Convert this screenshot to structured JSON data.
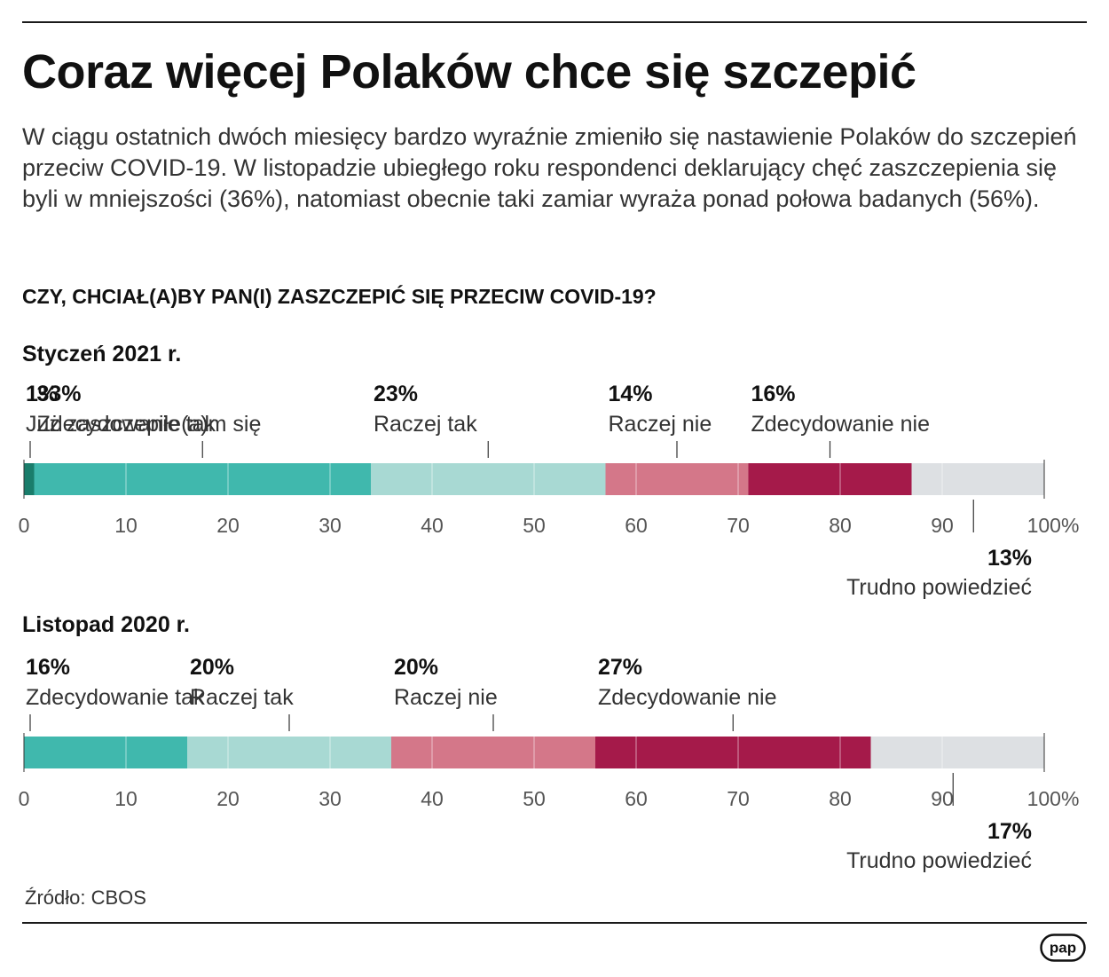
{
  "title": "Coraz więcej Polaków chce się szczepić",
  "subtitle": "W ciągu ostatnich dwóch miesięcy bardzo wyraźnie zmieniło się nastawienie Polaków do szczepień przeciw COVID-19. W listopadzie ubiegłego roku respondenci deklarujący chęć zaszczepienia się byli w mniejszości (36%), natomiast obecnie taki zamiar wyraża ponad połowa badanych (56%).",
  "question": "CZY, CHCIAŁ(A)BY PAN(I) ZASZCZEPIĆ SIĘ PRZECIW COVID-19?",
  "source": "Źródło: CBOS",
  "logo": "pap",
  "colors": {
    "already": "#1a7d6b",
    "definitely_yes": "#40b8ad",
    "rather_yes": "#a8d9d3",
    "rather_no": "#d47789",
    "definitely_no": "#a51a4a",
    "hard_to_say": "#dde0e3"
  },
  "chart_data": [
    {
      "type": "bar",
      "stacked": true,
      "orientation": "horizontal",
      "title": "Styczeń 2021 r.",
      "xlim": [
        0,
        100
      ],
      "x_ticks": [
        "0",
        "10",
        "20",
        "30",
        "40",
        "50",
        "60",
        "70",
        "80",
        "90",
        "100%"
      ],
      "series": [
        {
          "name": "Już zaszczepiłe(a)m się",
          "value": 1,
          "label": "1%",
          "color": "#1a7d6b"
        },
        {
          "name": "Zdecydowanie tak",
          "value": 33,
          "label": "33%",
          "color": "#40b8ad"
        },
        {
          "name": "Raczej tak",
          "value": 23,
          "label": "23%",
          "color": "#a8d9d3"
        },
        {
          "name": "Raczej nie",
          "value": 14,
          "label": "14%",
          "color": "#d47789"
        },
        {
          "name": "Zdecydowanie nie",
          "value": 16,
          "label": "16%",
          "color": "#a51a4a"
        },
        {
          "name": "Trudno powiedzieć",
          "value": 13,
          "label": "13%",
          "color": "#dde0e3"
        }
      ]
    },
    {
      "type": "bar",
      "stacked": true,
      "orientation": "horizontal",
      "title": "Listopad 2020 r.",
      "xlim": [
        0,
        100
      ],
      "x_ticks": [
        "0",
        "10",
        "20",
        "30",
        "40",
        "50",
        "60",
        "70",
        "80",
        "90",
        "100%"
      ],
      "series": [
        {
          "name": "Zdecydowanie tak",
          "value": 16,
          "label": "16%",
          "color": "#40b8ad"
        },
        {
          "name": "Raczej tak",
          "value": 20,
          "label": "20%",
          "color": "#a8d9d3"
        },
        {
          "name": "Raczej nie",
          "value": 20,
          "label": "20%",
          "color": "#d47789"
        },
        {
          "name": "Zdecydowanie nie",
          "value": 27,
          "label": "27%",
          "color": "#a51a4a"
        },
        {
          "name": "Trudno powiedzieć",
          "value": 17,
          "label": "17%",
          "color": "#dde0e3"
        }
      ]
    }
  ]
}
